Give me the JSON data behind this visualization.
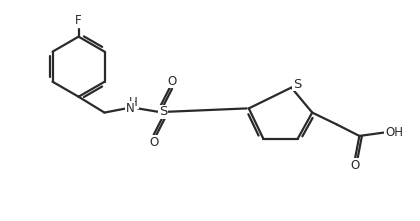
{
  "background": "#ffffff",
  "line_color": "#2a2a2a",
  "line_width": 1.6,
  "font_size": 8.5,
  "figsize": [
    4.2,
    2.21
  ],
  "dpi": 100,
  "xlim": [
    0,
    10
  ],
  "ylim": [
    0,
    5
  ]
}
